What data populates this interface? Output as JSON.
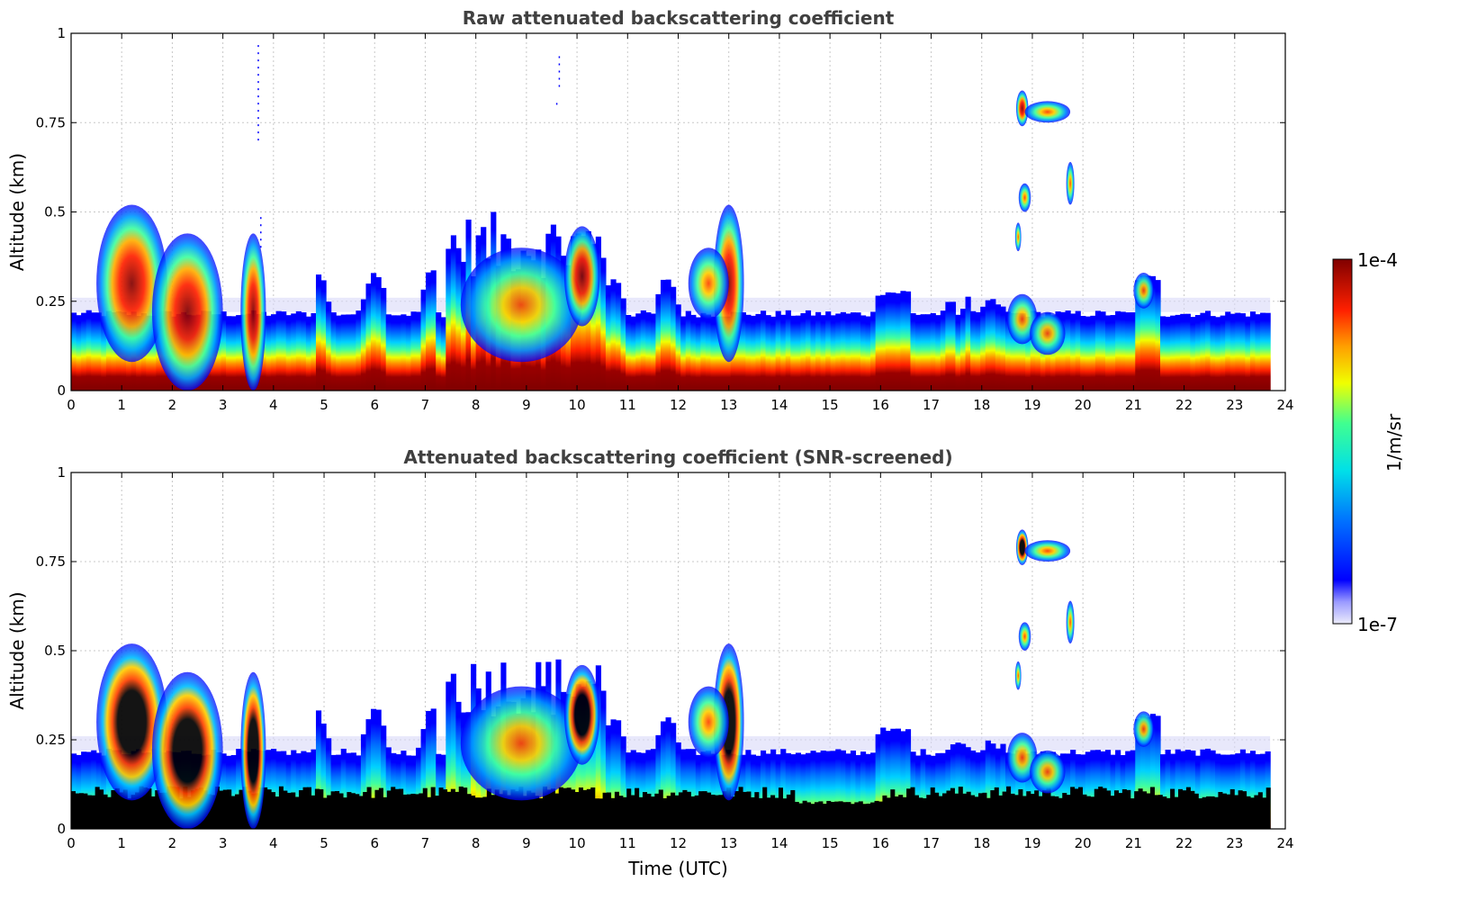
{
  "chart_data": [
    {
      "type": "heatmap",
      "title": "Raw attenuated backscattering coefficient",
      "xlabel": "",
      "ylabel": "Altitude (km)",
      "xlim": [
        0,
        24
      ],
      "ylim": [
        0,
        1
      ],
      "xticks": [
        "0",
        "1",
        "2",
        "3",
        "4",
        "5",
        "6",
        "7",
        "8",
        "9",
        "10",
        "11",
        "12",
        "13",
        "14",
        "15",
        "16",
        "17",
        "18",
        "19",
        "20",
        "21",
        "22",
        "23",
        "24"
      ],
      "yticks": [
        "0",
        "0.25",
        "0.5",
        "0.75",
        "1"
      ],
      "grid": true,
      "screened": false,
      "features": [
        {
          "name": "aerosol layer",
          "x": [
            0,
            23.7
          ],
          "y": [
            0,
            0.23
          ],
          "intensity": "high near surface"
        },
        {
          "name": "boundary layer clouds",
          "x": [
            0.8,
            4
          ],
          "y": [
            0,
            0.6
          ],
          "intensity": "very high"
        },
        {
          "name": "convective plumes",
          "x": [
            7.5,
            10.5
          ],
          "y": [
            0,
            0.45
          ],
          "intensity": "high"
        },
        {
          "name": "plume",
          "x": [
            12.5,
            13.5
          ],
          "y": [
            0,
            0.55
          ],
          "intensity": "high"
        },
        {
          "name": "elevated cloud",
          "x": [
            18.7,
            19.8
          ],
          "y": [
            0.72,
            0.85
          ],
          "intensity": "high"
        },
        {
          "name": "elevated cloud",
          "x": [
            18.6,
            19.8
          ],
          "y": [
            0.4,
            0.65
          ],
          "intensity": "medium"
        },
        {
          "name": "cloud",
          "x": [
            21,
            21.5
          ],
          "y": [
            0.22,
            0.33
          ],
          "intensity": "medium"
        }
      ]
    },
    {
      "type": "heatmap",
      "title": "Attenuated backscattering coefficient (SNR-screened)",
      "xlabel": "Time (UTC)",
      "ylabel": "Altitude (km)",
      "xlim": [
        0,
        24
      ],
      "ylim": [
        0,
        1
      ],
      "xticks": [
        "0",
        "1",
        "2",
        "3",
        "4",
        "5",
        "6",
        "7",
        "8",
        "9",
        "10",
        "11",
        "12",
        "13",
        "14",
        "15",
        "16",
        "17",
        "18",
        "19",
        "20",
        "21",
        "22",
        "23",
        "24"
      ],
      "yticks": [
        "0",
        "0.25",
        "0.5",
        "0.75",
        "1"
      ],
      "grid": true,
      "screened": true,
      "features": [
        {
          "name": "screened surface layer",
          "x": [
            0,
            23.7
          ],
          "y": [
            0,
            0.1
          ],
          "intensity": "screened (black)"
        },
        {
          "name": "aerosol layer",
          "x": [
            0,
            23.7
          ],
          "y": [
            0.1,
            0.23
          ],
          "intensity": "high"
        },
        {
          "name": "boundary layer clouds",
          "x": [
            0.8,
            4
          ],
          "y": [
            0,
            0.6
          ],
          "intensity": "screened core"
        },
        {
          "name": "elevated cloud",
          "x": [
            18.7,
            19.8
          ],
          "y": [
            0.72,
            0.85
          ],
          "intensity": "screened core"
        }
      ]
    }
  ],
  "colorbar": {
    "label": "1/m/sr",
    "max_label": "1e-4",
    "min_label": "1e-7",
    "scale": "log",
    "colormap": [
      "#e8e8f8",
      "#0000ff",
      "#00ffff",
      "#ffff00",
      "#ff0000",
      "#800000"
    ]
  }
}
